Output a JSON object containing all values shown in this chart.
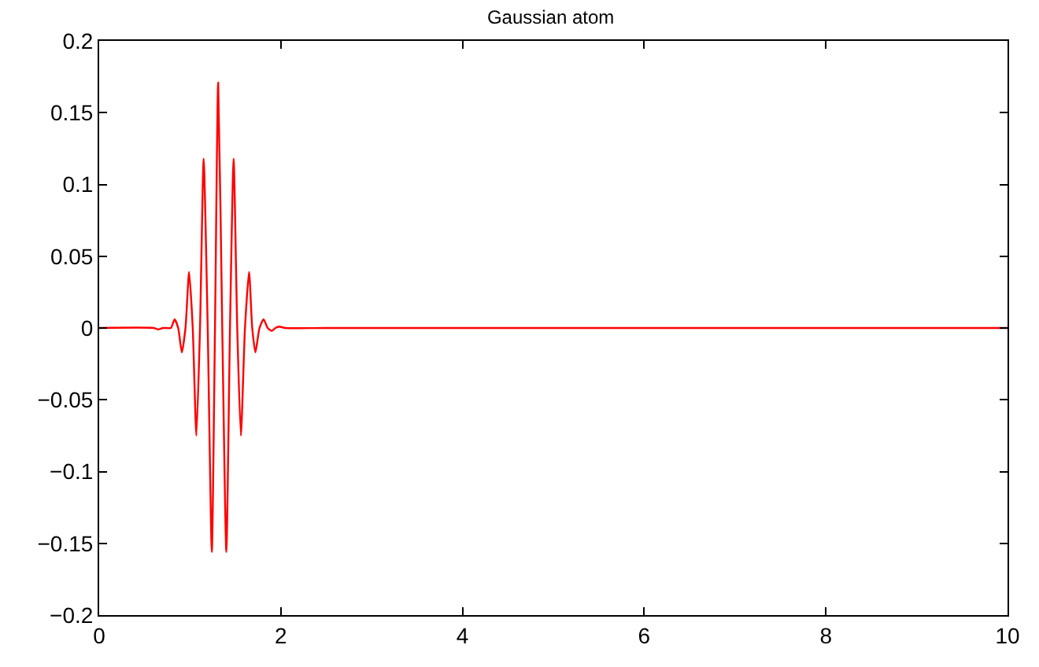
{
  "chart_data": {
    "type": "line",
    "title": "Gaussian atom",
    "x": [
      0,
      0.6,
      0.65,
      0.7,
      0.74,
      0.79,
      0.83,
      0.87,
      0.91,
      0.95,
      0.99,
      1.03,
      1.07,
      1.11,
      1.15,
      1.195,
      1.24,
      1.275,
      1.31,
      1.355,
      1.4,
      1.44,
      1.48,
      1.52,
      1.56,
      1.605,
      1.65,
      1.685,
      1.72,
      1.765,
      1.81,
      1.855,
      1.9,
      1.94,
      1.98,
      2.05,
      2.5,
      10
    ],
    "series": [
      {
        "color": "#ff0000",
        "values": [
          0,
          0,
          -0.001,
          0,
          0,
          0,
          0.006,
          0,
          -0.017,
          0,
          0.039,
          0,
          -0.075,
          0,
          0.118,
          0,
          -0.156,
          0,
          0.171,
          0,
          -0.156,
          0,
          0.118,
          0,
          -0.075,
          0,
          0.039,
          0,
          -0.017,
          0,
          0.006,
          0,
          -0.002,
          0,
          0.001,
          0,
          0,
          0
        ]
      }
    ],
    "xlim": [
      0,
      10
    ],
    "xticks": [
      0,
      2,
      4,
      6,
      8,
      10
    ],
    "ylim": [
      -0.2,
      0.2
    ],
    "yticks": [
      -0.2,
      -0.15,
      -0.1,
      -0.05,
      0,
      0.05,
      0.1,
      0.15,
      0.2
    ],
    "legend": false,
    "marker": "none",
    "line_style": "solid"
  }
}
